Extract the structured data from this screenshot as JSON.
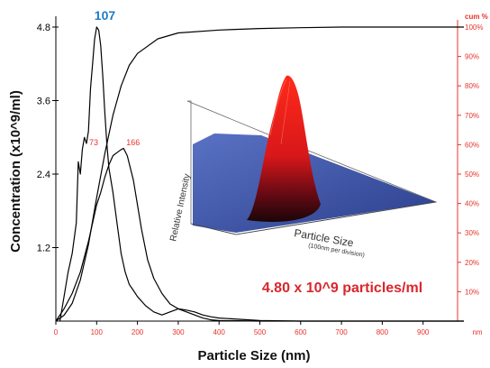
{
  "chart_data": {
    "type": "line",
    "xlabel": "Particle Size (nm)",
    "ylabel": "Concentration (x10^9/ml)",
    "xlim": [
      0,
      1000
    ],
    "ylim": [
      0,
      4.8
    ],
    "x_ticks": [
      "0",
      "100",
      "200",
      "300",
      "400",
      "500",
      "600",
      "700",
      "800",
      "900"
    ],
    "x_unit_label": "nm",
    "y_ticks": [
      "1.2",
      "2.4",
      "3.6",
      "4.8"
    ],
    "y_tick_values": [
      1.2,
      2.4,
      3.6,
      4.8
    ],
    "right_axis_title": "cum %",
    "right_ticks": [
      "10%",
      "20%",
      "30%",
      "40%",
      "50%",
      "60%",
      "70%",
      "80%",
      "90%",
      "100%"
    ],
    "right_tick_values": [
      10,
      20,
      30,
      40,
      50,
      60,
      70,
      80,
      90,
      100
    ],
    "series": [
      {
        "type": "distribution",
        "axis": "left",
        "x": [
          10,
          20,
          30,
          40,
          50,
          55,
          60,
          65,
          70,
          75,
          80,
          85,
          90,
          95,
          100,
          105,
          110,
          115,
          120,
          125,
          130,
          140,
          150,
          160,
          170,
          180,
          190,
          200,
          220,
          240,
          260,
          280,
          300,
          320,
          340,
          360,
          380,
          400,
          500,
          600,
          700,
          800,
          900,
          1000
        ],
        "y": [
          0,
          0.4,
          0.8,
          1.1,
          1.6,
          2.6,
          2.4,
          2.8,
          3.0,
          2.9,
          3.1,
          3.8,
          4.2,
          4.6,
          4.8,
          4.75,
          4.5,
          4.0,
          3.4,
          2.9,
          2.5,
          2.1,
          1.6,
          1.1,
          0.8,
          0.6,
          0.5,
          0.4,
          0.25,
          0.15,
          0.1,
          0.15,
          0.2,
          0.15,
          0.1,
          0.05,
          0.02,
          0.01,
          0,
          0,
          0,
          0,
          0,
          0
        ]
      },
      {
        "type": "distribution",
        "axis": "left",
        "x": [
          0,
          20,
          40,
          60,
          80,
          100,
          110,
          120,
          130,
          140,
          150,
          160,
          166,
          175,
          190,
          200,
          210,
          225,
          240,
          260,
          280,
          300,
          320,
          340,
          360,
          380,
          400,
          450,
          500,
          600,
          700,
          800,
          900,
          1000
        ],
        "y": [
          0,
          0.2,
          0.45,
          0.8,
          1.3,
          1.9,
          2.1,
          2.35,
          2.55,
          2.7,
          2.75,
          2.8,
          2.82,
          2.7,
          2.3,
          1.9,
          1.5,
          1.0,
          0.7,
          0.45,
          0.28,
          0.2,
          0.18,
          0.15,
          0.1,
          0.07,
          0.05,
          0.03,
          0.01,
          0,
          0,
          0,
          0,
          0
        ]
      },
      {
        "type": "cumulative",
        "axis": "right",
        "x": [
          0,
          20,
          40,
          60,
          80,
          100,
          120,
          140,
          160,
          180,
          200,
          250,
          300,
          400,
          500,
          600,
          700,
          800,
          900,
          1000
        ],
        "y": [
          0,
          2,
          6,
          14,
          26,
          42,
          57,
          70,
          80,
          87,
          91,
          96,
          98,
          99,
          99.5,
          99.8,
          100,
          100,
          100,
          100
        ]
      }
    ],
    "annotations": [
      {
        "text": "107",
        "x": 107,
        "y": 4.8,
        "color": "#1f7cc7"
      },
      {
        "text": "73",
        "x": 73,
        "y": 2.9,
        "color": "#e8322b"
      },
      {
        "text": "166",
        "x": 166,
        "y": 2.9,
        "color": "#e8322b"
      }
    ],
    "summary_text": "4.80 x 10^9 particles/ml",
    "inset": {
      "x_label": "Particle Size",
      "x_sub_label": "(100nm per division)",
      "z_label": "Relative Intensity"
    },
    "grid": false
  },
  "colors": {
    "curve": "#000000",
    "right_axis": "#e8322b",
    "peak_main": "#1f7cc7",
    "peak_minor": "#e8322b",
    "summary": "#d9262c",
    "inset_floor": "#3e58a8",
    "inset_peak": "#e01414"
  }
}
